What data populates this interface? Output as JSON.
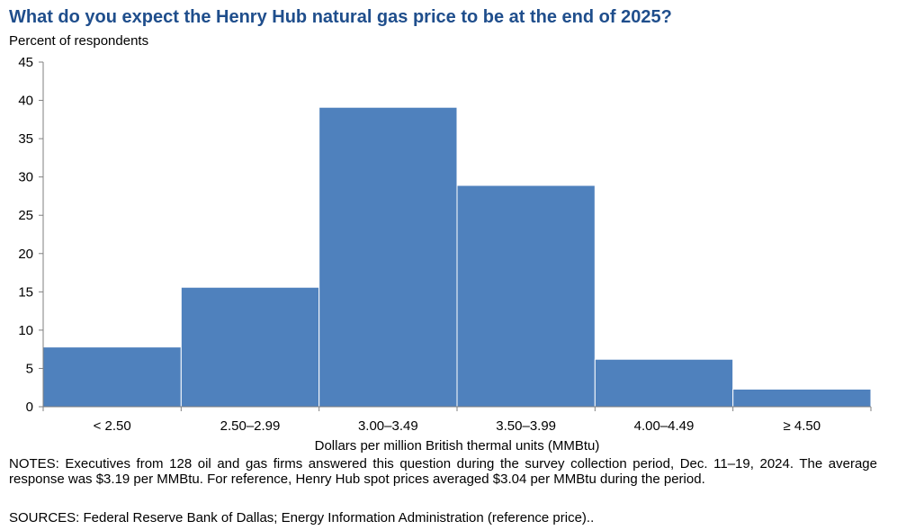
{
  "chart_data": {
    "type": "bar",
    "title": "What do you expect the Henry Hub natural gas price to be at the end of 2025?",
    "ylabel": "Percent of respondents",
    "xlabel": "Dollars per million British thermal units (MMBtu)",
    "categories": [
      "< 2.50",
      "2.50–2.99",
      "3.00–3.49",
      "3.50–3.99",
      "4.00–4.49",
      "≥ 4.50"
    ],
    "values": [
      7.8,
      15.6,
      39.1,
      28.9,
      6.2,
      2.3
    ],
    "ylim": [
      0,
      45
    ],
    "yticks": [
      "0",
      "5",
      "10",
      "15",
      "20",
      "25",
      "30",
      "35",
      "40",
      "45"
    ],
    "grid": false,
    "bar_color": "#4f81bd"
  },
  "notes": "NOTES: Executives from 128 oil and gas firms answered this question during the survey collection period, Dec. 11–19, 2024. The average response was $3.19 per MMBtu. For reference, Henry Hub spot prices averaged $3.04 per MMBtu during the period.",
  "sources": "SOURCES: Federal Reserve Bank of Dallas; Energy Information Administration (reference price).."
}
